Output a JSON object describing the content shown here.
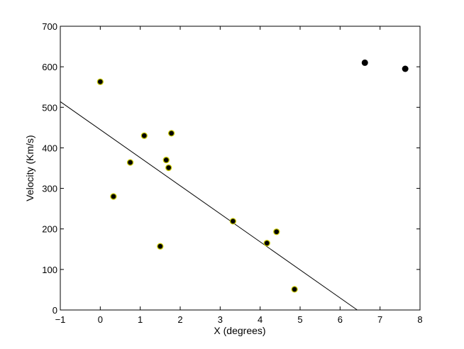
{
  "chart_data": {
    "type": "scatter",
    "title": "",
    "xlabel": "X (degrees)",
    "ylabel": "Velocity (Km/s)",
    "xlim": [
      -1,
      8
    ],
    "ylim": [
      0,
      700
    ],
    "xticks": [
      -1,
      0,
      1,
      2,
      3,
      4,
      5,
      6,
      7,
      8
    ],
    "yticks": [
      0,
      100,
      200,
      300,
      400,
      500,
      600,
      700
    ],
    "xtick_labels": [
      "−1",
      "0",
      "1",
      "2",
      "3",
      "4",
      "5",
      "6",
      "7",
      "8"
    ],
    "ytick_labels": [
      "0",
      "100",
      "200",
      "300",
      "400",
      "500",
      "600",
      "700"
    ],
    "grid": false,
    "series": [
      {
        "kind": "points",
        "style": "black dots with yellow outline",
        "points": [
          {
            "x": 0.0,
            "y": 563
          },
          {
            "x": 0.33,
            "y": 280
          },
          {
            "x": 0.75,
            "y": 364
          },
          {
            "x": 1.1,
            "y": 430
          },
          {
            "x": 1.5,
            "y": 157
          },
          {
            "x": 1.65,
            "y": 370
          },
          {
            "x": 1.71,
            "y": 351
          },
          {
            "x": 1.78,
            "y": 436
          },
          {
            "x": 3.32,
            "y": 219
          },
          {
            "x": 4.17,
            "y": 165
          },
          {
            "x": 4.41,
            "y": 193
          },
          {
            "x": 4.86,
            "y": 51
          }
        ]
      },
      {
        "kind": "points",
        "style": "black dots",
        "points": [
          {
            "x": 6.62,
            "y": 610
          },
          {
            "x": 7.63,
            "y": 595
          }
        ]
      },
      {
        "kind": "line",
        "style": "black regression line",
        "points": [
          {
            "x": -1,
            "y": 514
          },
          {
            "x": 6.43,
            "y": 0
          }
        ]
      }
    ],
    "colors": {
      "marker": "#000000",
      "marker_outline": "#c8c800",
      "line": "#000000",
      "axes": "#000000"
    }
  }
}
